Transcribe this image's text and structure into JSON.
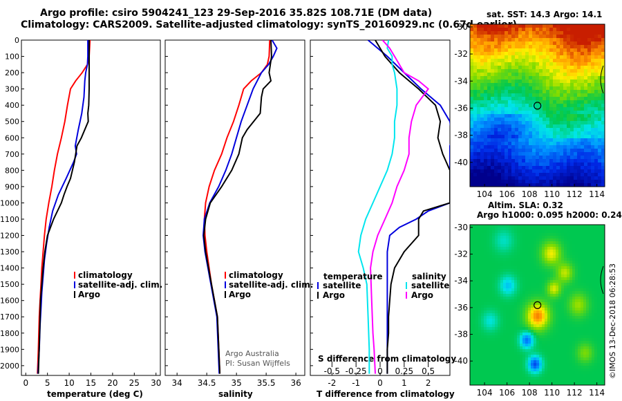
{
  "header": {
    "title_line1": "Argo profile: csiro 5904241_123 29-Sep-2016 35.82S 108.71E (DM data)",
    "title_line2": "Climatology: CARS2009. Satellite-adjusted climatology: synTS_20160929.nc (0.67d earlier)"
  },
  "colors": {
    "climatology": "#ff0000",
    "satellite": "#0000dd",
    "argo": "#000000",
    "salinity_sat": "#00e5ee",
    "salinity_argo": "#ff00ff"
  },
  "chart_data": [
    {
      "type": "line",
      "id": "temperature",
      "xlabel": "temperature (deg C)",
      "ylabel": "",
      "xlim": [
        -1,
        31
      ],
      "ylim": [
        2060,
        0
      ],
      "xticks": [
        "0",
        "5",
        "10",
        "15",
        "20",
        "25",
        "30"
      ],
      "yticks": [
        "0",
        "100",
        "200",
        "300",
        "400",
        "500",
        "600",
        "700",
        "800",
        "900",
        "1000",
        "1100",
        "1200",
        "1300",
        "1400",
        "1500",
        "1600",
        "1700",
        "1800",
        "1900",
        "2000"
      ],
      "legend": [
        "climatology",
        "satellite-adj. clim.",
        "Argo"
      ],
      "series": [
        {
          "name": "climatology",
          "x": [
            14.8,
            14.6,
            14.2,
            13.0,
            11.5,
            10.3,
            9.6,
            9.0,
            8.2,
            7.3,
            6.6,
            6.0,
            5.3,
            4.7,
            4.3,
            4.0,
            3.7,
            3.5,
            3.3,
            3.1,
            2.9,
            2.7
          ],
          "y": [
            0,
            100,
            150,
            200,
            250,
            300,
            400,
            500,
            600,
            700,
            800,
            900,
            1000,
            1100,
            1200,
            1300,
            1400,
            1500,
            1600,
            1700,
            1900,
            2050
          ]
        },
        {
          "name": "satellite-adj. clim.",
          "x": [
            14.3,
            14.3,
            14.2,
            13.8,
            13.6,
            13.4,
            12.9,
            12.1,
            11.4,
            11.7,
            11.0,
            9.3,
            7.5,
            6.2,
            5.4,
            4.8,
            4.3,
            4.0,
            3.7,
            3.5,
            3.3,
            3.1,
            2.8
          ],
          "y": [
            0,
            100,
            150,
            200,
            250,
            350,
            450,
            550,
            650,
            700,
            750,
            850,
            950,
            1050,
            1150,
            1250,
            1350,
            1450,
            1550,
            1650,
            1750,
            1900,
            2050
          ]
        },
        {
          "name": "Argo",
          "x": [
            14.6,
            14.6,
            14.6,
            14.6,
            14.5,
            14.3,
            14.4,
            12.8,
            11.8,
            11.2,
            10.3,
            9.5,
            8.8,
            8.2,
            6.4,
            5.0,
            4.4,
            4.0,
            3.7,
            3.4,
            3.2,
            2.9
          ],
          "y": [
            0,
            100,
            200,
            300,
            400,
            450,
            500,
            600,
            650,
            750,
            850,
            900,
            950,
            1000,
            1100,
            1200,
            1300,
            1400,
            1500,
            1600,
            1800,
            2050
          ]
        }
      ]
    },
    {
      "type": "line",
      "id": "salinity",
      "xlabel": "salinity",
      "xlim": [
        33.8,
        36.15
      ],
      "ylim": [
        2060,
        0
      ],
      "xticks": [
        "34",
        "34.5",
        "35",
        "35.5",
        "36"
      ],
      "legend": [
        "climatology",
        "satellite-adj. clim.",
        "Argo"
      ],
      "annotation": [
        "Argo Australia",
        "PI: Susan Wijffels"
      ],
      "series": [
        {
          "name": "climatology",
          "x": [
            35.56,
            35.55,
            35.52,
            35.42,
            35.25,
            35.12,
            35.04,
            34.95,
            34.84,
            34.75,
            34.63,
            34.54,
            34.48,
            34.46,
            34.47,
            34.5,
            34.54,
            34.58,
            34.63,
            34.68,
            34.72
          ],
          "y": [
            0,
            100,
            150,
            200,
            250,
            300,
            400,
            500,
            600,
            700,
            800,
            900,
            1000,
            1100,
            1200,
            1300,
            1400,
            1500,
            1600,
            1700,
            2050
          ]
        },
        {
          "name": "satellite-adj. clim.",
          "x": [
            35.6,
            35.68,
            35.62,
            35.54,
            35.42,
            35.28,
            35.18,
            35.08,
            35.0,
            34.92,
            34.82,
            34.7,
            34.55,
            34.46,
            34.44,
            34.47,
            34.52,
            34.57,
            34.62,
            34.67,
            34.71
          ],
          "y": [
            0,
            50,
            100,
            150,
            200,
            300,
            400,
            500,
            600,
            700,
            800,
            900,
            1000,
            1100,
            1200,
            1300,
            1400,
            1500,
            1600,
            1700,
            2050
          ]
        },
        {
          "name": "Argo",
          "x": [
            35.58,
            35.59,
            35.55,
            35.58,
            35.45,
            35.42,
            35.4,
            35.18,
            35.1,
            35.04,
            34.92,
            34.75,
            34.56,
            34.48,
            34.45,
            34.48,
            34.53,
            34.58,
            34.63,
            34.68,
            34.72
          ],
          "y": [
            0,
            100,
            200,
            250,
            300,
            350,
            450,
            550,
            600,
            700,
            800,
            900,
            1000,
            1100,
            1200,
            1300,
            1400,
            1500,
            1600,
            1700,
            2050
          ]
        }
      ]
    },
    {
      "type": "line",
      "id": "difference",
      "xlabel": "T difference from climatology",
      "xlabel2": "S difference from climatology",
      "xlim": [
        -2.9,
        2.9
      ],
      "ylim": [
        2060,
        0
      ],
      "xticks": [
        "-2",
        "-1",
        "0",
        "1",
        "2"
      ],
      "xticks_S": [
        "-0.5",
        "-0.25",
        "0",
        "0.25",
        "0.5"
      ],
      "legend_left_title": "temperature",
      "legend_right_title": "salinity",
      "legend_left": [
        "satellite",
        "Argo"
      ],
      "legend_right": [
        "satellite",
        "Argo"
      ],
      "series": [
        {
          "name": "satellite",
          "quantity": "temperature",
          "x": [
            -0.5,
            -0.1,
            0.3,
            1.0,
            1.7,
            2.5,
            2.9,
            3.0,
            2.9,
            2.9,
            2.0,
            1.5,
            0.8,
            0.4,
            0.3,
            0.3,
            0.3,
            0.3,
            0.3,
            0.3,
            0.3
          ],
          "y": [
            0,
            50,
            100,
            200,
            300,
            400,
            500,
            600,
            650,
            1000,
            1050,
            1100,
            1150,
            1200,
            1300,
            1400,
            1500,
            1600,
            1700,
            1800,
            2050
          ]
        },
        {
          "name": "Argo",
          "quantity": "temperature",
          "x": [
            -0.2,
            0.2,
            0.8,
            1.6,
            2.3,
            2.5,
            2.4,
            2.6,
            2.9,
            2.9,
            1.8,
            1.6,
            1.6,
            1.0,
            0.6,
            0.45,
            0.4,
            0.35,
            0.35,
            0.3,
            0.3
          ],
          "y": [
            0,
            100,
            200,
            300,
            400,
            500,
            600,
            700,
            800,
            1000,
            1050,
            1100,
            1200,
            1300,
            1400,
            1500,
            1600,
            1700,
            1800,
            1900,
            2050
          ]
        },
        {
          "name": "satellite",
          "quantity": "salinity",
          "x": [
            0.35,
            0.3,
            0.5,
            0.5,
            0.6,
            0.7,
            0.7,
            0.6,
            0.6,
            0.5,
            0.3,
            0.0,
            -0.3,
            -0.6,
            -0.8,
            -0.9,
            -0.7,
            -0.55,
            -0.5,
            -0.45,
            -0.45
          ],
          "y": [
            0,
            50,
            100,
            150,
            200,
            300,
            400,
            500,
            600,
            700,
            800,
            900,
            1000,
            1100,
            1200,
            1300,
            1400,
            1500,
            1700,
            1900,
            2050
          ]
        },
        {
          "name": "Argo",
          "quantity": "salinity",
          "x": [
            0.1,
            0.4,
            0.6,
            1.0,
            1.6,
            2.0,
            1.5,
            1.3,
            1.2,
            1.2,
            1.0,
            0.7,
            0.5,
            0.2,
            -0.1,
            -0.3,
            -0.4,
            -0.35,
            -0.3,
            -0.25,
            -0.2
          ],
          "y": [
            0,
            50,
            100,
            200,
            250,
            300,
            400,
            500,
            600,
            700,
            800,
            900,
            1000,
            1100,
            1200,
            1300,
            1400,
            1600,
            1800,
            1900,
            2050
          ]
        }
      ]
    },
    {
      "type": "heatmap",
      "id": "sst_map",
      "title": "sat. SST: 14.3 Argo: 14.1",
      "xticks": [
        "104",
        "106",
        "108",
        "110",
        "112",
        "114"
      ],
      "yticks": [
        "-30",
        "-32",
        "-34",
        "-36",
        "-38",
        "-40"
      ],
      "xlim": [
        102.7,
        114.7
      ],
      "ylim": [
        -41.8,
        -29.8
      ],
      "marker": {
        "lon": 108.71,
        "lat": -35.82
      },
      "sst_value": 14.3,
      "argo_value": 14.1
    },
    {
      "type": "heatmap",
      "id": "sla_map",
      "title_line1": "Altim. SLA: 0.32",
      "title_line2": "Argo h1000: 0.095 h2000: 0.24",
      "xticks": [
        "104",
        "106",
        "108",
        "110",
        "112",
        "114"
      ],
      "yticks": [
        "-30",
        "-32",
        "-34",
        "-36",
        "-38",
        "-40"
      ],
      "xlim": [
        102.7,
        114.7
      ],
      "ylim": [
        -41.8,
        -29.8
      ],
      "marker": {
        "lon": 108.71,
        "lat": -35.82
      },
      "sla": 0.32,
      "h1000": 0.095,
      "h2000": 0.24
    }
  ],
  "footer": {
    "stamp": "©IMOS 13-Dec-2018 06:28:53"
  }
}
